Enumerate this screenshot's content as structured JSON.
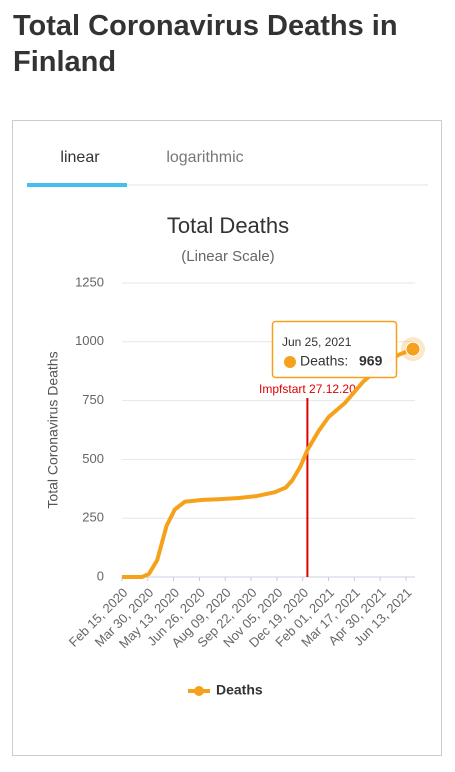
{
  "header": {
    "title": "Total Coronavirus Deaths in Finland"
  },
  "tabs": [
    "linear",
    "logarithmic"
  ],
  "chart_data": {
    "type": "line",
    "title": "Total Deaths",
    "subtitle": "(Linear Scale)",
    "y_label": "Total Coronavirus Deaths",
    "x": [
      "Feb 15, 2020",
      "Mar 01, 2020",
      "Mar 20, 2020",
      "Apr 01, 2020",
      "Apr 15, 2020",
      "May 01, 2020",
      "May 15, 2020",
      "Jun 01, 2020",
      "Jul 01, 2020",
      "Aug 01, 2020",
      "Sep 01, 2020",
      "Oct 01, 2020",
      "Nov 01, 2020",
      "Nov 20, 2020",
      "Dec 01, 2020",
      "Dec 15, 2020",
      "Dec 27, 2020",
      "Jan 15, 2021",
      "Feb 01, 2021",
      "Mar 01, 2021",
      "Apr 01, 2021",
      "May 01, 2021",
      "Jun 01, 2021",
      "Jun 25, 2021"
    ],
    "series": [
      {
        "name": "Deaths",
        "color": "#f5a11c",
        "values": [
          0,
          0,
          0,
          13,
          72,
          218,
          287,
          320,
          328,
          331,
          336,
          344,
          360,
          380,
          410,
          470,
          540,
          620,
          680,
          740,
          830,
          895,
          945,
          969
        ]
      }
    ],
    "xlim": [
      "Feb 15, 2020",
      "Jun 25, 2021"
    ],
    "xticks": [
      "Feb 15, 2020",
      "Mar 30, 2020",
      "May 13, 2020",
      "Jun 26, 2020",
      "Aug 09, 2020",
      "Sep 22, 2020",
      "Nov 05, 2020",
      "Dec 19, 2020",
      "Feb 01, 2021",
      "Mar 17, 2021",
      "Apr 30, 2021",
      "Jun 13, 2021"
    ],
    "ylim": [
      0,
      1250
    ],
    "yticks": [
      0,
      250,
      500,
      750,
      1000,
      1250
    ],
    "grid": true,
    "legend": "bottom",
    "annotations": [
      {
        "x": "Dec 27, 2020",
        "label": "Impfstart 27.12.20",
        "color": "#e00000"
      }
    ],
    "tooltip_label": "Deaths:"
  }
}
